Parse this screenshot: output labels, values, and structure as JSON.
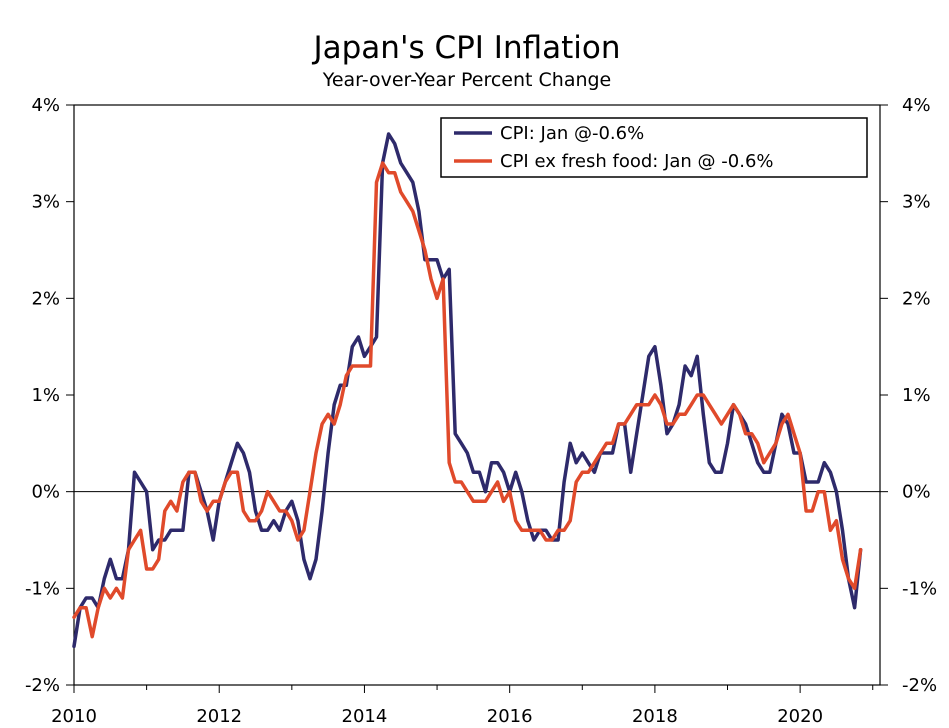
{
  "chart_data": {
    "type": "line",
    "title": "Japan's CPI Inflation",
    "subtitle": "Year-over-Year Percent Change",
    "xlabel": "",
    "ylabel": "",
    "xlim": [
      2010.0,
      2021.1
    ],
    "ylim": [
      -2,
      4
    ],
    "x_ticks": [
      2010,
      2012,
      2014,
      2016,
      2018,
      2020
    ],
    "x_tick_labels": [
      "2010",
      "2012",
      "2014",
      "2016",
      "2018",
      "2020"
    ],
    "y_ticks": [
      -2,
      -1,
      0,
      1,
      2,
      3,
      4
    ],
    "y_tick_labels": [
      "-2%",
      "-1%",
      "0%",
      "1%",
      "2%",
      "3%",
      "4%"
    ],
    "zero_line": true,
    "grid": false,
    "legend_position": "top-right",
    "x_start": 2010.0,
    "x_step": 0.08333,
    "series": [
      {
        "name": "CPI: Jan @-0.6%",
        "color": "#2E2A6B",
        "values": [
          -1.6,
          -1.2,
          -1.1,
          -1.1,
          -1.2,
          -0.9,
          -0.7,
          -0.9,
          -0.9,
          -0.6,
          0.2,
          0.1,
          0.0,
          -0.6,
          -0.5,
          -0.5,
          -0.4,
          -0.4,
          -0.4,
          0.2,
          0.2,
          0.0,
          -0.2,
          -0.5,
          -0.1,
          0.1,
          0.3,
          0.5,
          0.4,
          0.2,
          -0.2,
          -0.4,
          -0.4,
          -0.3,
          -0.4,
          -0.2,
          -0.1,
          -0.3,
          -0.7,
          -0.9,
          -0.7,
          -0.2,
          0.4,
          0.9,
          1.1,
          1.1,
          1.5,
          1.6,
          1.4,
          1.5,
          1.6,
          3.4,
          3.7,
          3.6,
          3.4,
          3.3,
          3.2,
          2.9,
          2.4,
          2.4,
          2.4,
          2.2,
          2.3,
          0.6,
          0.5,
          0.4,
          0.2,
          0.2,
          0.0,
          0.3,
          0.3,
          0.2,
          0.0,
          0.2,
          0.0,
          -0.3,
          -0.5,
          -0.4,
          -0.4,
          -0.5,
          -0.5,
          0.1,
          0.5,
          0.3,
          0.4,
          0.3,
          0.2,
          0.4,
          0.4,
          0.4,
          0.7,
          0.7,
          0.2,
          0.6,
          1.0,
          1.4,
          1.5,
          1.1,
          0.6,
          0.7,
          0.9,
          1.3,
          1.2,
          1.4,
          0.8,
          0.3,
          0.2,
          0.2,
          0.5,
          0.9,
          0.8,
          0.7,
          0.5,
          0.3,
          0.2,
          0.2,
          0.5,
          0.8,
          0.7,
          0.4,
          0.4,
          0.1,
          0.1,
          0.1,
          0.3,
          0.2,
          0.0,
          -0.4,
          -0.9,
          -1.2,
          -0.6
        ]
      },
      {
        "name": "CPI ex fresh food: Jan @ -0.6%",
        "color": "#E04A2B",
        "values": [
          -1.3,
          -1.2,
          -1.2,
          -1.5,
          -1.2,
          -1.0,
          -1.1,
          -1.0,
          -1.1,
          -0.6,
          -0.5,
          -0.4,
          -0.8,
          -0.8,
          -0.7,
          -0.2,
          -0.1,
          -0.2,
          0.1,
          0.2,
          0.2,
          -0.1,
          -0.2,
          -0.1,
          -0.1,
          0.1,
          0.2,
          0.2,
          -0.2,
          -0.3,
          -0.3,
          -0.2,
          0.0,
          -0.1,
          -0.2,
          -0.2,
          -0.3,
          -0.5,
          -0.4,
          0.0,
          0.4,
          0.7,
          0.8,
          0.7,
          0.9,
          1.2,
          1.3,
          1.3,
          1.3,
          1.3,
          3.2,
          3.4,
          3.3,
          3.3,
          3.1,
          3.0,
          2.9,
          2.7,
          2.5,
          2.2,
          2.0,
          2.2,
          0.3,
          0.1,
          0.1,
          0.0,
          -0.1,
          -0.1,
          -0.1,
          0.0,
          0.1,
          -0.1,
          0.0,
          -0.3,
          -0.4,
          -0.4,
          -0.4,
          -0.4,
          -0.5,
          -0.5,
          -0.4,
          -0.4,
          -0.3,
          0.1,
          0.2,
          0.2,
          0.3,
          0.4,
          0.5,
          0.5,
          0.7,
          0.7,
          0.8,
          0.9,
          0.9,
          0.9,
          1.0,
          0.9,
          0.7,
          0.7,
          0.8,
          0.8,
          0.9,
          1.0,
          1.0,
          0.9,
          0.8,
          0.7,
          0.8,
          0.9,
          0.8,
          0.6,
          0.6,
          0.5,
          0.3,
          0.4,
          0.5,
          0.7,
          0.8,
          0.6,
          0.4,
          -0.2,
          -0.2,
          0.0,
          0.0,
          -0.4,
          -0.3,
          -0.7,
          -0.9,
          -1.0,
          -0.6
        ]
      }
    ]
  }
}
